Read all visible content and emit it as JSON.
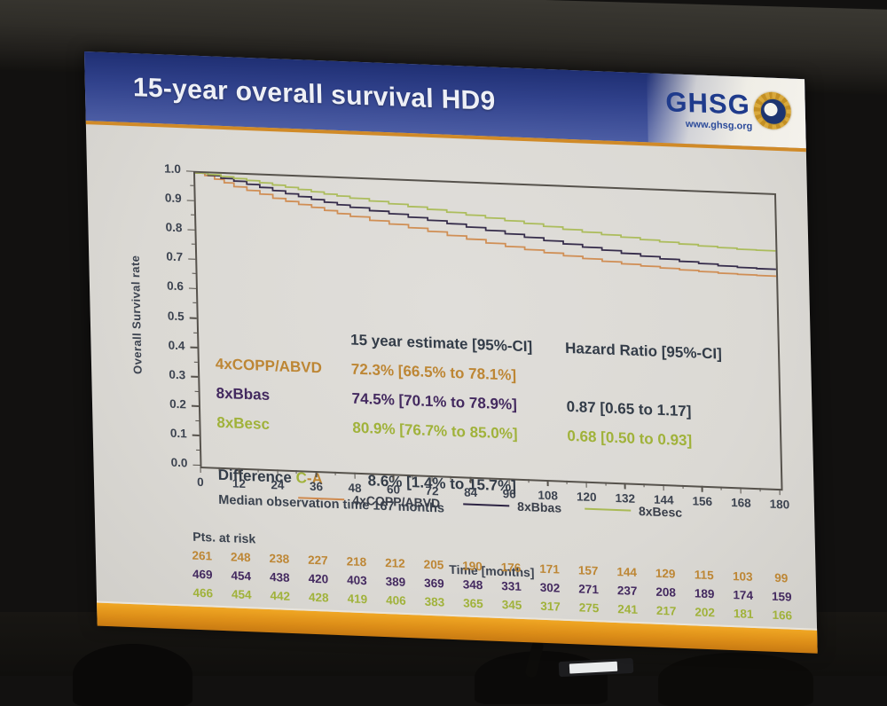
{
  "slide": {
    "title": "15-year overall survival HD9",
    "logo": {
      "name": "GHSG",
      "url": "www.ghsg.org"
    },
    "accent_color": "#d8891f",
    "header_blue": "#2f418b"
  },
  "chart_data": {
    "type": "line",
    "subtype": "kaplan-meier-step",
    "title": "15-year overall survival HD9",
    "xlabel": "Time [months]",
    "ylabel": "Overall Survival rate",
    "xlim": [
      0,
      180
    ],
    "ylim": [
      0.0,
      1.0
    ],
    "grid": false,
    "legend_position": "bottom-inside",
    "xticks": [
      0,
      12,
      24,
      36,
      48,
      60,
      72,
      84,
      96,
      108,
      120,
      132,
      144,
      156,
      168,
      180
    ],
    "ytick_labels": [
      "1.0",
      "0.9",
      "0.8",
      "0.7",
      "0.6",
      "0.5",
      "0.4",
      "0.3",
      "0.2",
      "0.1",
      "0.0"
    ],
    "series": [
      {
        "name": "4xCOPP/ABVD",
        "color": "#cf8a4e",
        "text_color": "#bd8634",
        "points": [
          [
            0,
            1
          ],
          [
            3,
            0.992
          ],
          [
            6,
            0.981
          ],
          [
            9,
            0.97
          ],
          [
            12,
            0.958
          ],
          [
            16,
            0.947
          ],
          [
            20,
            0.936
          ],
          [
            24,
            0.924
          ],
          [
            28,
            0.915
          ],
          [
            32,
            0.906
          ],
          [
            36,
            0.898
          ],
          [
            40,
            0.889
          ],
          [
            44,
            0.88
          ],
          [
            48,
            0.872
          ],
          [
            54,
            0.861
          ],
          [
            60,
            0.851
          ],
          [
            66,
            0.841
          ],
          [
            72,
            0.831
          ],
          [
            78,
            0.82
          ],
          [
            84,
            0.81
          ],
          [
            90,
            0.799
          ],
          [
            96,
            0.79
          ],
          [
            102,
            0.782
          ],
          [
            108,
            0.774
          ],
          [
            114,
            0.766
          ],
          [
            120,
            0.759
          ],
          [
            126,
            0.752
          ],
          [
            132,
            0.746
          ],
          [
            138,
            0.741
          ],
          [
            144,
            0.737
          ],
          [
            150,
            0.733
          ],
          [
            156,
            0.73
          ],
          [
            162,
            0.727
          ],
          [
            168,
            0.725
          ],
          [
            174,
            0.724
          ],
          [
            180,
            0.723
          ]
        ]
      },
      {
        "name": "8xBbas",
        "color": "#2c2343",
        "text_color": "#43295f",
        "points": [
          [
            0,
            1
          ],
          [
            4,
            0.993
          ],
          [
            8,
            0.985
          ],
          [
            12,
            0.977
          ],
          [
            16,
            0.968
          ],
          [
            20,
            0.959
          ],
          [
            24,
            0.95
          ],
          [
            28,
            0.941
          ],
          [
            32,
            0.933
          ],
          [
            36,
            0.925
          ],
          [
            40,
            0.917
          ],
          [
            44,
            0.91
          ],
          [
            48,
            0.903
          ],
          [
            54,
            0.894
          ],
          [
            60,
            0.886
          ],
          [
            66,
            0.877
          ],
          [
            72,
            0.869
          ],
          [
            78,
            0.86
          ],
          [
            84,
            0.851
          ],
          [
            90,
            0.842
          ],
          [
            96,
            0.833
          ],
          [
            102,
            0.824
          ],
          [
            108,
            0.815
          ],
          [
            114,
            0.806
          ],
          [
            120,
            0.798
          ],
          [
            126,
            0.79
          ],
          [
            132,
            0.782
          ],
          [
            138,
            0.775
          ],
          [
            144,
            0.768
          ],
          [
            150,
            0.762
          ],
          [
            156,
            0.757
          ],
          [
            162,
            0.752
          ],
          [
            168,
            0.749
          ],
          [
            174,
            0.747
          ],
          [
            180,
            0.745
          ]
        ]
      },
      {
        "name": "8xBesc",
        "color": "#a9ba55",
        "text_color": "#a0b23a",
        "points": [
          [
            0,
            1
          ],
          [
            4,
            0.996
          ],
          [
            8,
            0.991
          ],
          [
            12,
            0.986
          ],
          [
            16,
            0.981
          ],
          [
            20,
            0.975
          ],
          [
            24,
            0.969
          ],
          [
            28,
            0.963
          ],
          [
            32,
            0.957
          ],
          [
            36,
            0.951
          ],
          [
            40,
            0.945
          ],
          [
            44,
            0.94
          ],
          [
            48,
            0.934
          ],
          [
            54,
            0.927
          ],
          [
            60,
            0.92
          ],
          [
            66,
            0.913
          ],
          [
            72,
            0.906
          ],
          [
            78,
            0.899
          ],
          [
            84,
            0.892
          ],
          [
            90,
            0.885
          ],
          [
            96,
            0.878
          ],
          [
            102,
            0.871
          ],
          [
            108,
            0.863
          ],
          [
            114,
            0.856
          ],
          [
            120,
            0.849
          ],
          [
            126,
            0.843
          ],
          [
            132,
            0.837
          ],
          [
            138,
            0.831
          ],
          [
            144,
            0.826
          ],
          [
            150,
            0.821
          ],
          [
            156,
            0.817
          ],
          [
            162,
            0.814
          ],
          [
            168,
            0.811
          ],
          [
            174,
            0.81
          ],
          [
            180,
            0.809
          ]
        ]
      }
    ],
    "estimates": {
      "header_estimate": "15 year estimate [95%-CI]",
      "header_hr": "Hazard Ratio [95%-CI]",
      "rows": [
        {
          "label": "4xCOPP/ABVD",
          "estimate": "72.3% [66.5% to 78.1%]",
          "hr": ""
        },
        {
          "label": "8xBbas",
          "estimate": "74.5% [70.1% to 78.9%]",
          "hr": "0.87 [0.65 to 1.17]"
        },
        {
          "label": "8xBesc",
          "estimate": "80.9% [76.7% to 85.0%]",
          "hr": "0.68 [0.50 to 0.93]"
        }
      ],
      "difference_label": "Difference",
      "difference_c": "C",
      "difference_a": "-A",
      "difference_value": "8.6% [1.4% to 15.7%]",
      "median_note": "Median observation time 167 months"
    },
    "at_risk": {
      "label": "Pts. at risk",
      "rows": [
        {
          "series": "4xCOPP/ABVD",
          "values": [
            261,
            248,
            238,
            227,
            218,
            212,
            205,
            190,
            176,
            171,
            157,
            144,
            129,
            115,
            103,
            99
          ]
        },
        {
          "series": "8xBbas",
          "values": [
            469,
            454,
            438,
            420,
            403,
            389,
            369,
            348,
            331,
            302,
            271,
            237,
            208,
            189,
            174,
            159
          ]
        },
        {
          "series": "8xBesc",
          "values": [
            466,
            454,
            442,
            428,
            419,
            406,
            383,
            365,
            345,
            317,
            275,
            241,
            217,
            202,
            181,
            166
          ]
        }
      ]
    }
  }
}
